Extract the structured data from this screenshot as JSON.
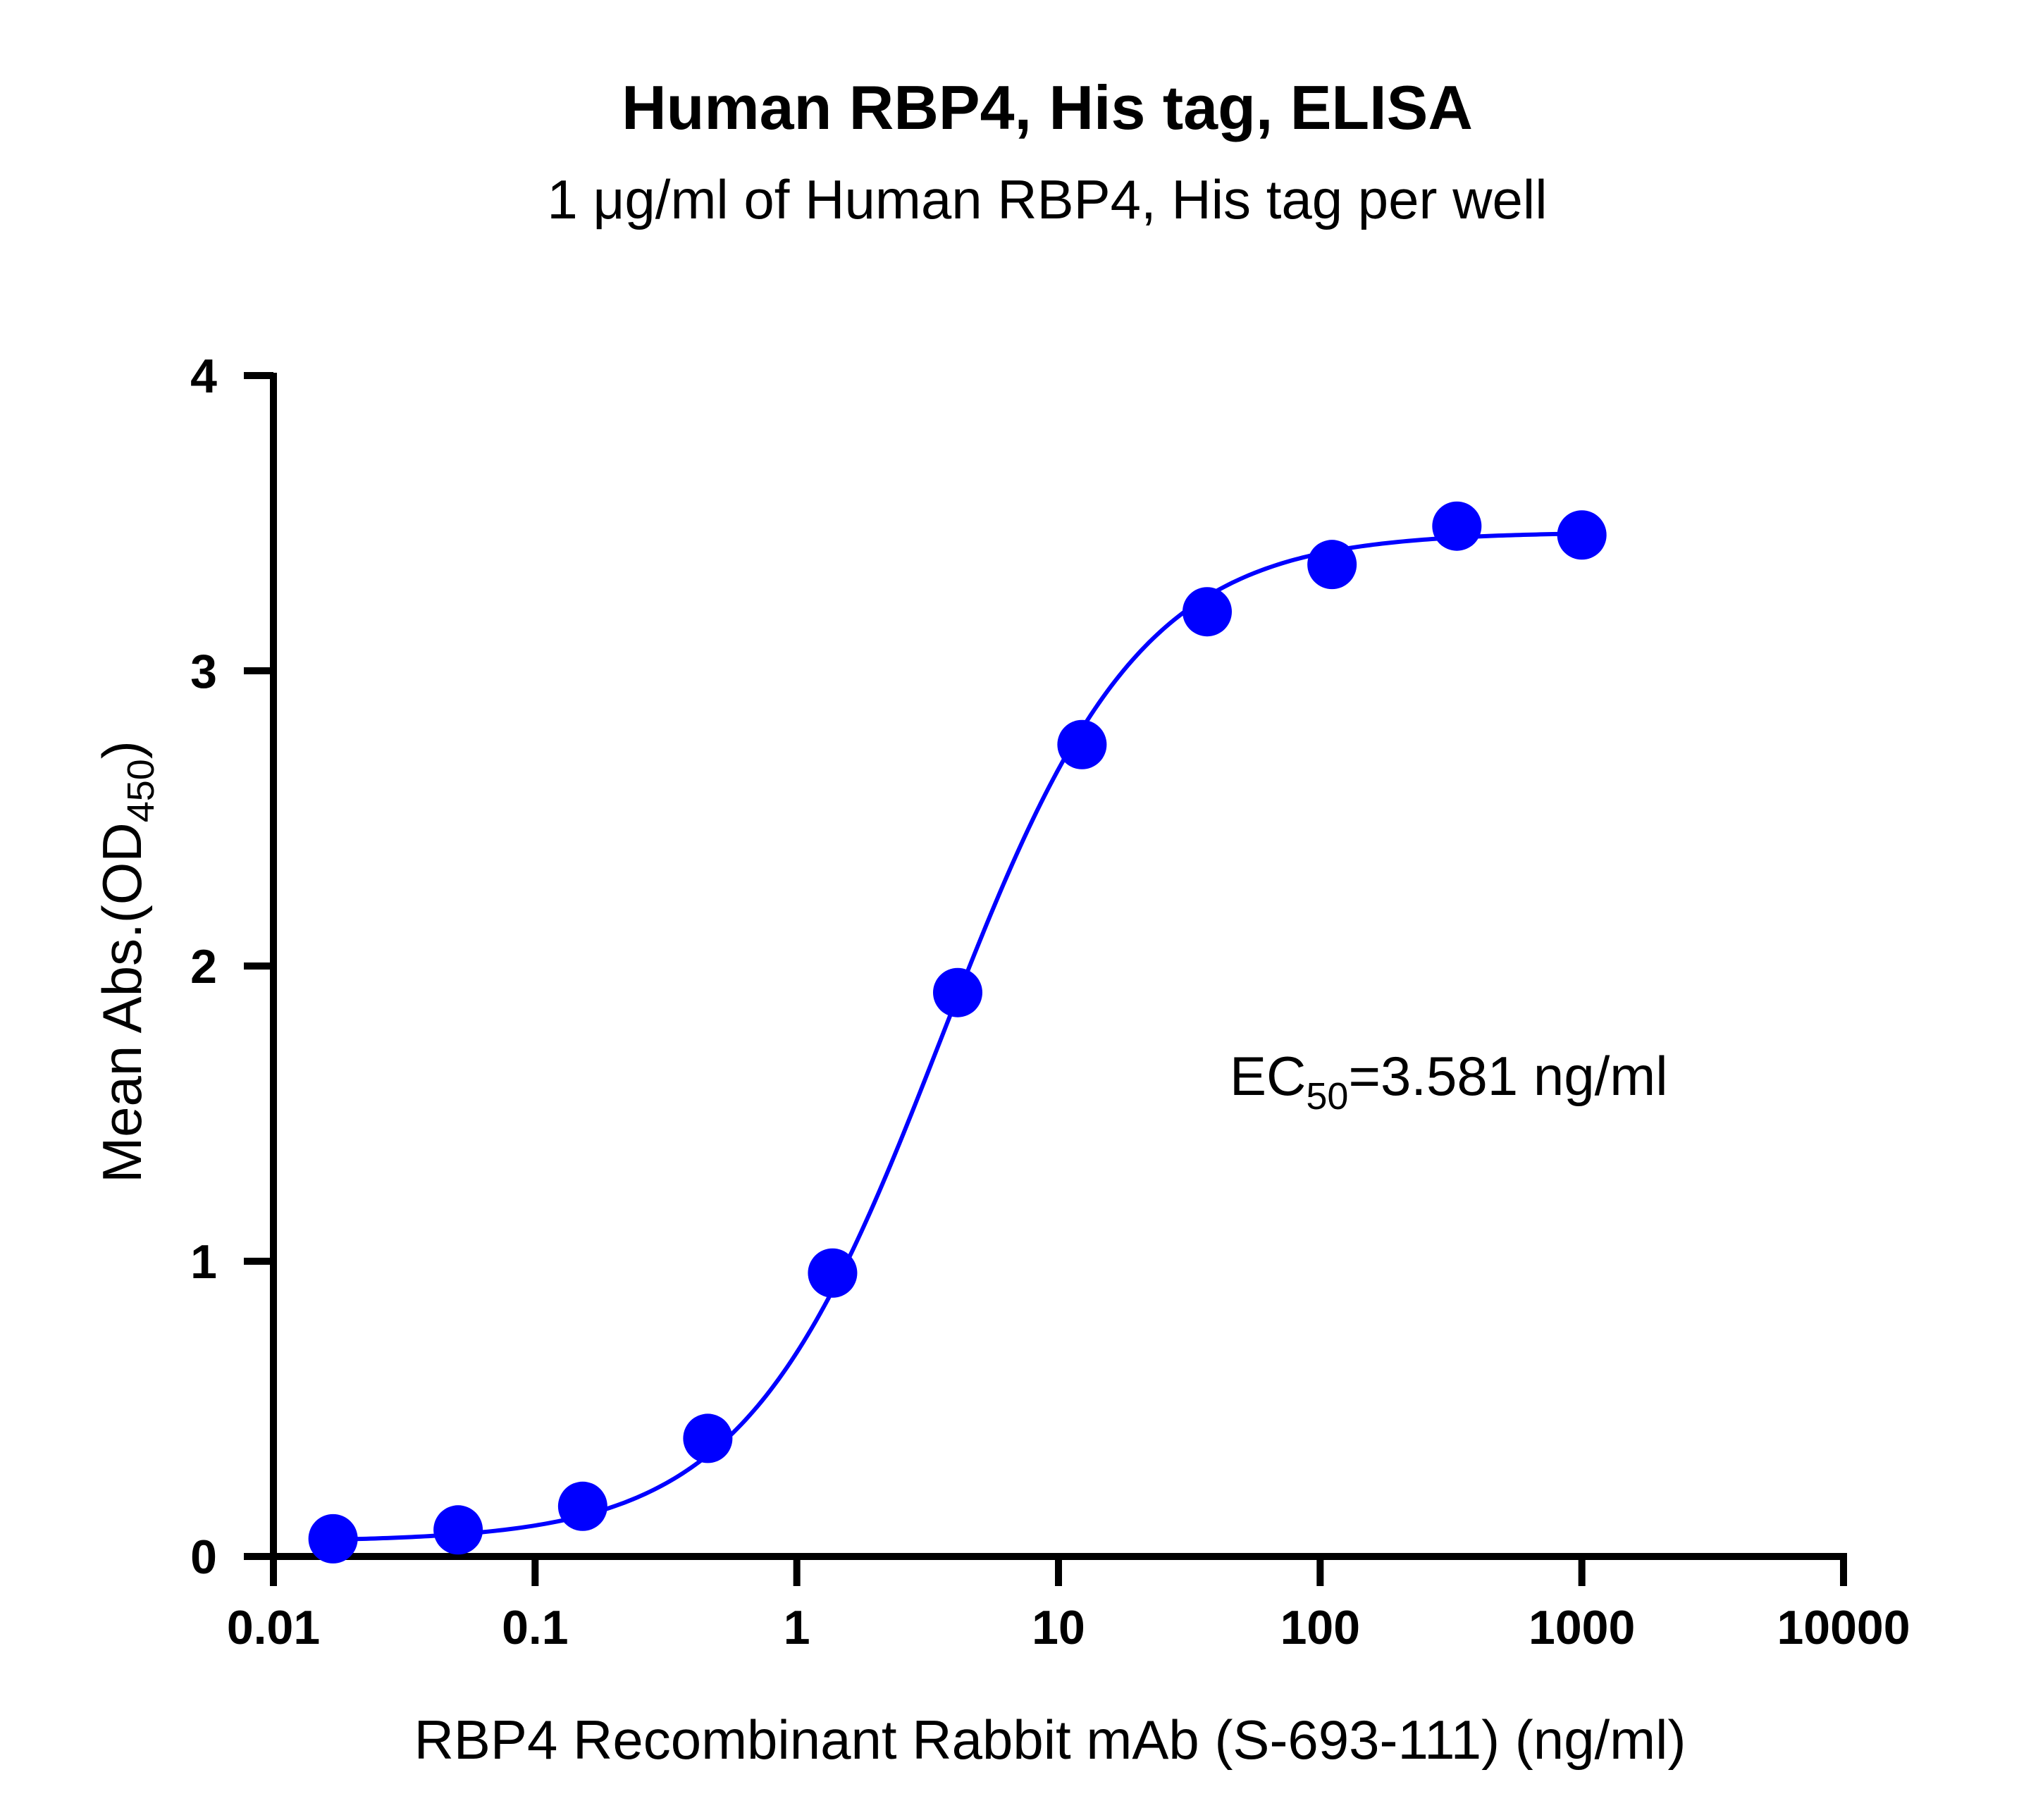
{
  "chart_data": {
    "type": "scatter",
    "title": "Human RBP4, His tag, ELISA",
    "subtitle": "1 μg/ml of Human RBP4, His tag per well",
    "xlabel": "RBP4 Recombinant Rabbit mAb (S-693-111) (ng/ml)",
    "ylabel": {
      "main": "Mean Abs.(OD",
      "subscript": "450",
      "suffix": ")"
    },
    "x_scale": "log",
    "xlim": [
      0.01,
      10000
    ],
    "ylim": [
      0,
      4
    ],
    "x_ticks": [
      0.01,
      0.1,
      1,
      10,
      100,
      1000,
      10000
    ],
    "x_tick_labels": [
      "0.01",
      "0.1",
      "1",
      "10",
      "100",
      "1000",
      "10000"
    ],
    "y_ticks": [
      0,
      1,
      2,
      3,
      4
    ],
    "y_tick_labels": [
      "0",
      "1",
      "2",
      "3",
      "4"
    ],
    "grid": false,
    "series": [
      {
        "x": [
          0.0169,
          0.0508,
          0.152,
          0.457,
          1.37,
          4.12,
          12.3,
          37.0,
          111,
          333,
          1000
        ],
        "y": [
          0.06,
          0.09,
          0.17,
          0.4,
          0.96,
          1.91,
          2.75,
          3.2,
          3.36,
          3.49,
          3.46
        ],
        "fit": "4PL",
        "color": "#0000ff"
      }
    ],
    "fit_params": {
      "bottom": 0.05,
      "top": 3.47,
      "ec50": 3.581,
      "hill": 1.15
    },
    "annotation": {
      "prefix": "EC",
      "subscript": "50",
      "text": "=3.581 ng/ml"
    },
    "colors": {
      "series": "#0000ff",
      "axis": "#000000"
    }
  }
}
